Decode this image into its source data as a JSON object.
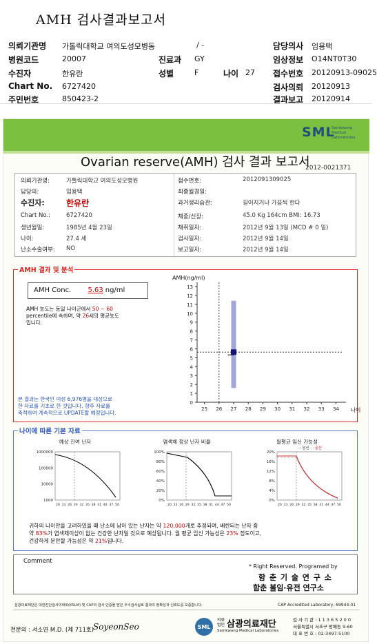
{
  "header": {
    "title": "AMH 검사결과보고서",
    "rows": [
      [
        {
          "l": "의뢰기관명",
          "v": "가톨릭대학교 여의도성모병동"
        },
        {
          "l": "",
          "v": "/ -"
        },
        {
          "l": "담당의사",
          "v": "임용택"
        }
      ],
      [
        {
          "l": "병원코드",
          "v": "20007"
        },
        {
          "l": "진료과",
          "v": "GY"
        },
        {
          "l": "임상정보",
          "v": "O14NT0T30"
        }
      ],
      [
        {
          "l": "수진자",
          "v": "한유란"
        },
        {
          "l": "성별",
          "v": "F"
        },
        {
          "l": "나이",
          "v": "27"
        },
        {
          "l": "접수번호",
          "v": "20120913-09025"
        }
      ],
      [
        {
          "l": "Chart No.",
          "v": "6727420"
        },
        {
          "l": "검사의뢰",
          "v": "20120913"
        }
      ],
      [
        {
          "l": "주민번호",
          "v": "850423-2"
        },
        {
          "l": "결과보고",
          "v": "20120914"
        }
      ]
    ]
  },
  "brand": {
    "logo": "SML",
    "sub1": "Samkwang",
    "sub2": "Medical",
    "sub3": "Laboratories"
  },
  "report": {
    "title": "Ovarian reserve(AMH) 검사 결과 보고서",
    "doc_no": "2012-0021371",
    "left": [
      {
        "l": "의뢰기관명:",
        "v": "가톨릭대학교 여의도성모병원"
      },
      {
        "l": "담당의:",
        "v": "임용택"
      },
      {
        "l": "수진자:",
        "v": "한유란"
      },
      {
        "l": "Chart No.:",
        "v": "6727420"
      },
      {
        "l": "생년월일:",
        "v": "1985년 4월 23일"
      },
      {
        "l": "나이:",
        "v": "27.4 세"
      },
      {
        "l": "난소수술여부:",
        "v": "NO"
      }
    ],
    "right": [
      {
        "l": "접수번호:",
        "v": "2012091309025"
      },
      {
        "l": "최종월경일:",
        "v": ""
      },
      {
        "l": "과거생리습관:",
        "v": "길어지거나 가끔씩 한다"
      },
      {
        "l": "체중/신장:",
        "v": "45.0 Kg    164cm     BMI: 16.73"
      },
      {
        "l": "채취일자:",
        "v": "2012년 9월 13일  (MCD # 0 일)"
      },
      {
        "l": "검사일자:",
        "v": "2012년 9월 14일"
      },
      {
        "l": "보고일자:",
        "v": "2012년 9월 14일"
      }
    ]
  },
  "amh": {
    "section": "AMH 결과 및 분석",
    "label": "AMH Conc.",
    "value": "5.63",
    "unit": "ng/ml",
    "desc1": "AMH 농도는 동일 나이군에서",
    "pct": "50 ~ 60",
    "desc2": "percentile에 속하며, 약",
    "age": "26",
    "desc3": "세의 평균농도",
    "desc4": "입니다.",
    "note1": "본 결과는 한국인 여성 6,976명을 대상으로",
    "note2": "한 자료를 기초로 한 것입니다. 향후 자료를",
    "note3": "축적하여 계속적으로 UPDATE할 예정입니다."
  },
  "chart_data": [
    {
      "type": "scatter",
      "ylabel": "AMH(ng/ml)",
      "xlabel": "나이",
      "x_ticks": [
        25,
        26,
        27,
        28,
        29,
        30,
        31,
        32,
        33,
        34
      ],
      "y_ticks": [
        0,
        1,
        2,
        3,
        4,
        5,
        6,
        7,
        8,
        9,
        10,
        11,
        12,
        13
      ],
      "ylim": [
        0,
        13
      ],
      "xlim": [
        24.5,
        34.5
      ],
      "range_bar": {
        "x": 27,
        "low": 1.6,
        "high": 11.4
      },
      "point": {
        "x": 27,
        "y": 5.63
      },
      "ref_lines": {
        "x": 26,
        "y": 5.63
      }
    },
    {
      "type": "line",
      "title": "예상 잔여 난자",
      "x_ticks": [
        20,
        23,
        26,
        29,
        32,
        35,
        38,
        41,
        44,
        47,
        50
      ],
      "y_ticks": [
        "1000000",
        "100000",
        "10000",
        "1000"
      ]
    },
    {
      "type": "line",
      "title": "염색체 정상 난자 비율",
      "x_ticks": [
        20,
        23,
        26,
        29,
        32,
        35,
        38,
        41,
        44,
        47,
        50
      ],
      "y_ticks": [
        "100%",
        "80%",
        "60%",
        "40%",
        "20%",
        "0%"
      ]
    },
    {
      "type": "line",
      "title": "월평균 임신 가능성",
      "legend_prefix": "- : 임신 - :",
      "legend_red": "출산",
      "x_ticks": [
        20,
        23,
        26,
        29,
        32,
        35,
        38,
        41,
        44,
        47,
        50
      ],
      "y_ticks": [
        "20%",
        "16%",
        "12%",
        "8%",
        "4%",
        "0%"
      ]
    }
  ],
  "basic": {
    "section": "나이에 따른 기본 자료",
    "s1": "귀하의 나이만을 고려하였을 때 난소에 남아 있는 난자는 약",
    "eggs": "120,000",
    "s2": "개로 추정되며, 배란되는 난자 중",
    "s3": "약",
    "p1": "83%",
    "s4": "가 염색체이상이 없는 건강한 난자일 것으로 예상됩니다. 월 평균 임신 가능성은",
    "p2": "23%",
    "s5": "정도이고,",
    "s6": "건강하게 분만할 가능성은 약",
    "p3": "21%",
    "s7": "입니다."
  },
  "comment": {
    "label": "Comment"
  },
  "program": {
    "l1": "* Right Reserved. Programed by",
    "l2": "함 춘 기 술 연 구 소",
    "l3": "함춘 불임·유전 연구소"
  },
  "footer": {
    "cert": "삼광의료재단은 대한진단검사의학회(KSLM) 및 CAP의 검사 인증을 받은 우수검사실로 결과의 정확성과 신뢰도를 보증합니다.",
    "cap": "CAP  Accredited  Laboratory,  69944-01",
    "doctor": "전문의 : 서소연 M.D. (제 711호)",
    "sign": "SoyeonSeo",
    "org1": "의료",
    "org2": "법인",
    "org_name": "삼광의료재단",
    "org_en": "Samkwang Medical Laboratories",
    "tel1": "검 사 기 관 : 1 1 3 6 5 2 0 0",
    "tel2": "서울특별시 서초구 방배동 9-60",
    "tel3": "대 표 번 호 : 02-3497-5100"
  }
}
